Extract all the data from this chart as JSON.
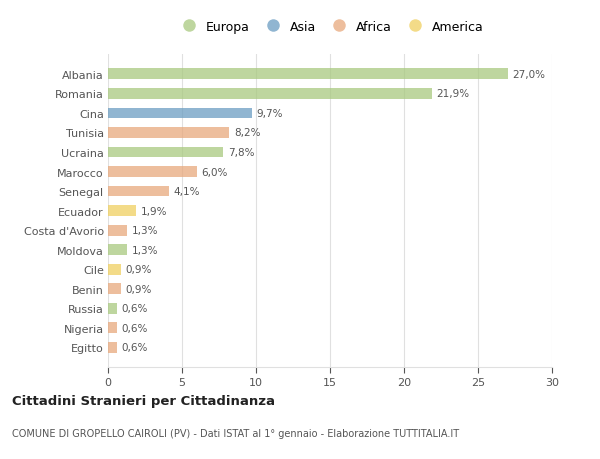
{
  "countries": [
    "Albania",
    "Romania",
    "Cina",
    "Tunisia",
    "Ucraina",
    "Marocco",
    "Senegal",
    "Ecuador",
    "Costa d'Avorio",
    "Moldova",
    "Cile",
    "Benin",
    "Russia",
    "Nigeria",
    "Egitto"
  ],
  "values": [
    27.0,
    21.9,
    9.7,
    8.2,
    7.8,
    6.0,
    4.1,
    1.9,
    1.3,
    1.3,
    0.9,
    0.9,
    0.6,
    0.6,
    0.6
  ],
  "labels": [
    "27,0%",
    "21,9%",
    "9,7%",
    "8,2%",
    "7,8%",
    "6,0%",
    "4,1%",
    "1,9%",
    "1,3%",
    "1,3%",
    "0,9%",
    "0,9%",
    "0,6%",
    "0,6%",
    "0,6%"
  ],
  "continents": [
    "Europa",
    "Europa",
    "Asia",
    "Africa",
    "Europa",
    "Africa",
    "Africa",
    "America",
    "Africa",
    "Europa",
    "America",
    "Africa",
    "Europa",
    "Africa",
    "Africa"
  ],
  "continent_colors": {
    "Europa": "#a8c97f",
    "Asia": "#6b9dc2",
    "Africa": "#e8a87c",
    "America": "#f0d060"
  },
  "legend_order": [
    "Europa",
    "Asia",
    "Africa",
    "America"
  ],
  "title": "Cittadini Stranieri per Cittadinanza",
  "subtitle": "COMUNE DI GROPELLO CAIROLI (PV) - Dati ISTAT al 1° gennaio - Elaborazione TUTTITALIA.IT",
  "xlim": [
    0,
    30
  ],
  "xticks": [
    0,
    5,
    10,
    15,
    20,
    25,
    30
  ],
  "background_color": "#ffffff",
  "bar_height": 0.55,
  "grid_color": "#e0e0e0"
}
